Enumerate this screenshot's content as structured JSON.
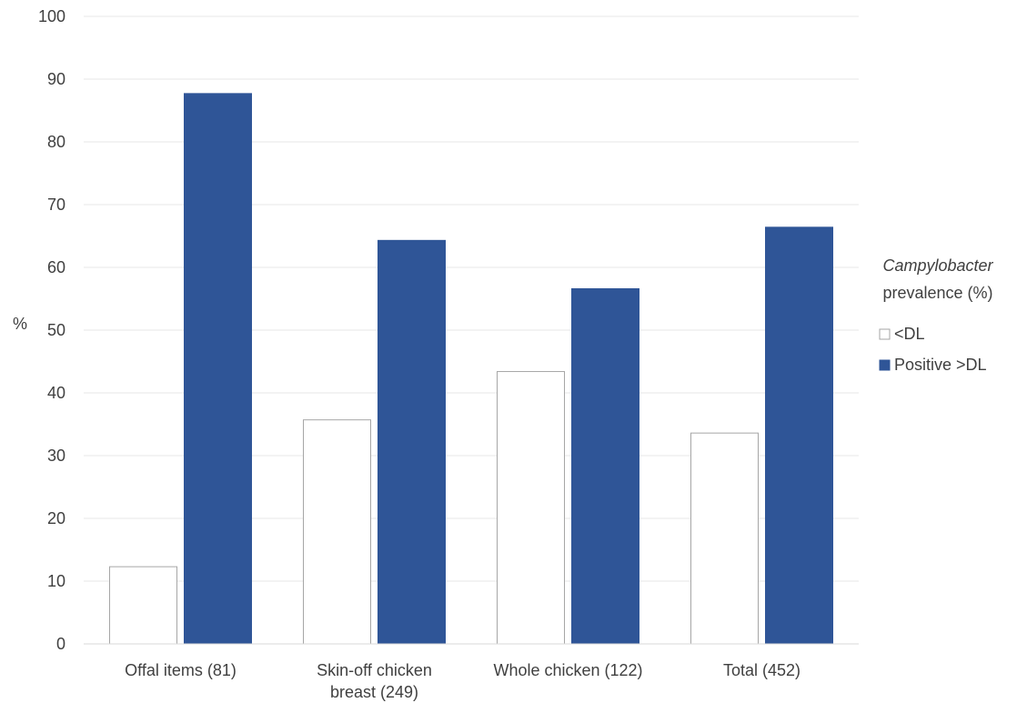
{
  "chart_data": {
    "type": "bar",
    "categories": [
      [
        "Offal items (81)"
      ],
      [
        "Skin-off chicken",
        "breast (249)"
      ],
      [
        "Whole chicken (122)"
      ],
      [
        "Total (452)"
      ]
    ],
    "series": [
      {
        "name": "<DL",
        "values": [
          12.3,
          35.7,
          43.4,
          33.6
        ],
        "color": "#ffffff",
        "stroke": "#a6a6a6"
      },
      {
        "name": "Positive >DL",
        "values": [
          87.7,
          64.3,
          56.6,
          66.4
        ],
        "color": "#2f5597",
        "stroke": "#2f5597"
      }
    ],
    "ylabel": "%",
    "ylim": [
      0,
      100
    ],
    "yticks": [
      0,
      10,
      20,
      30,
      40,
      50,
      60,
      70,
      80,
      90,
      100
    ],
    "grid": true,
    "legend": {
      "title_italic": "Campylobacter",
      "title_rest": "prevalence (%)",
      "placement": "right"
    }
  }
}
